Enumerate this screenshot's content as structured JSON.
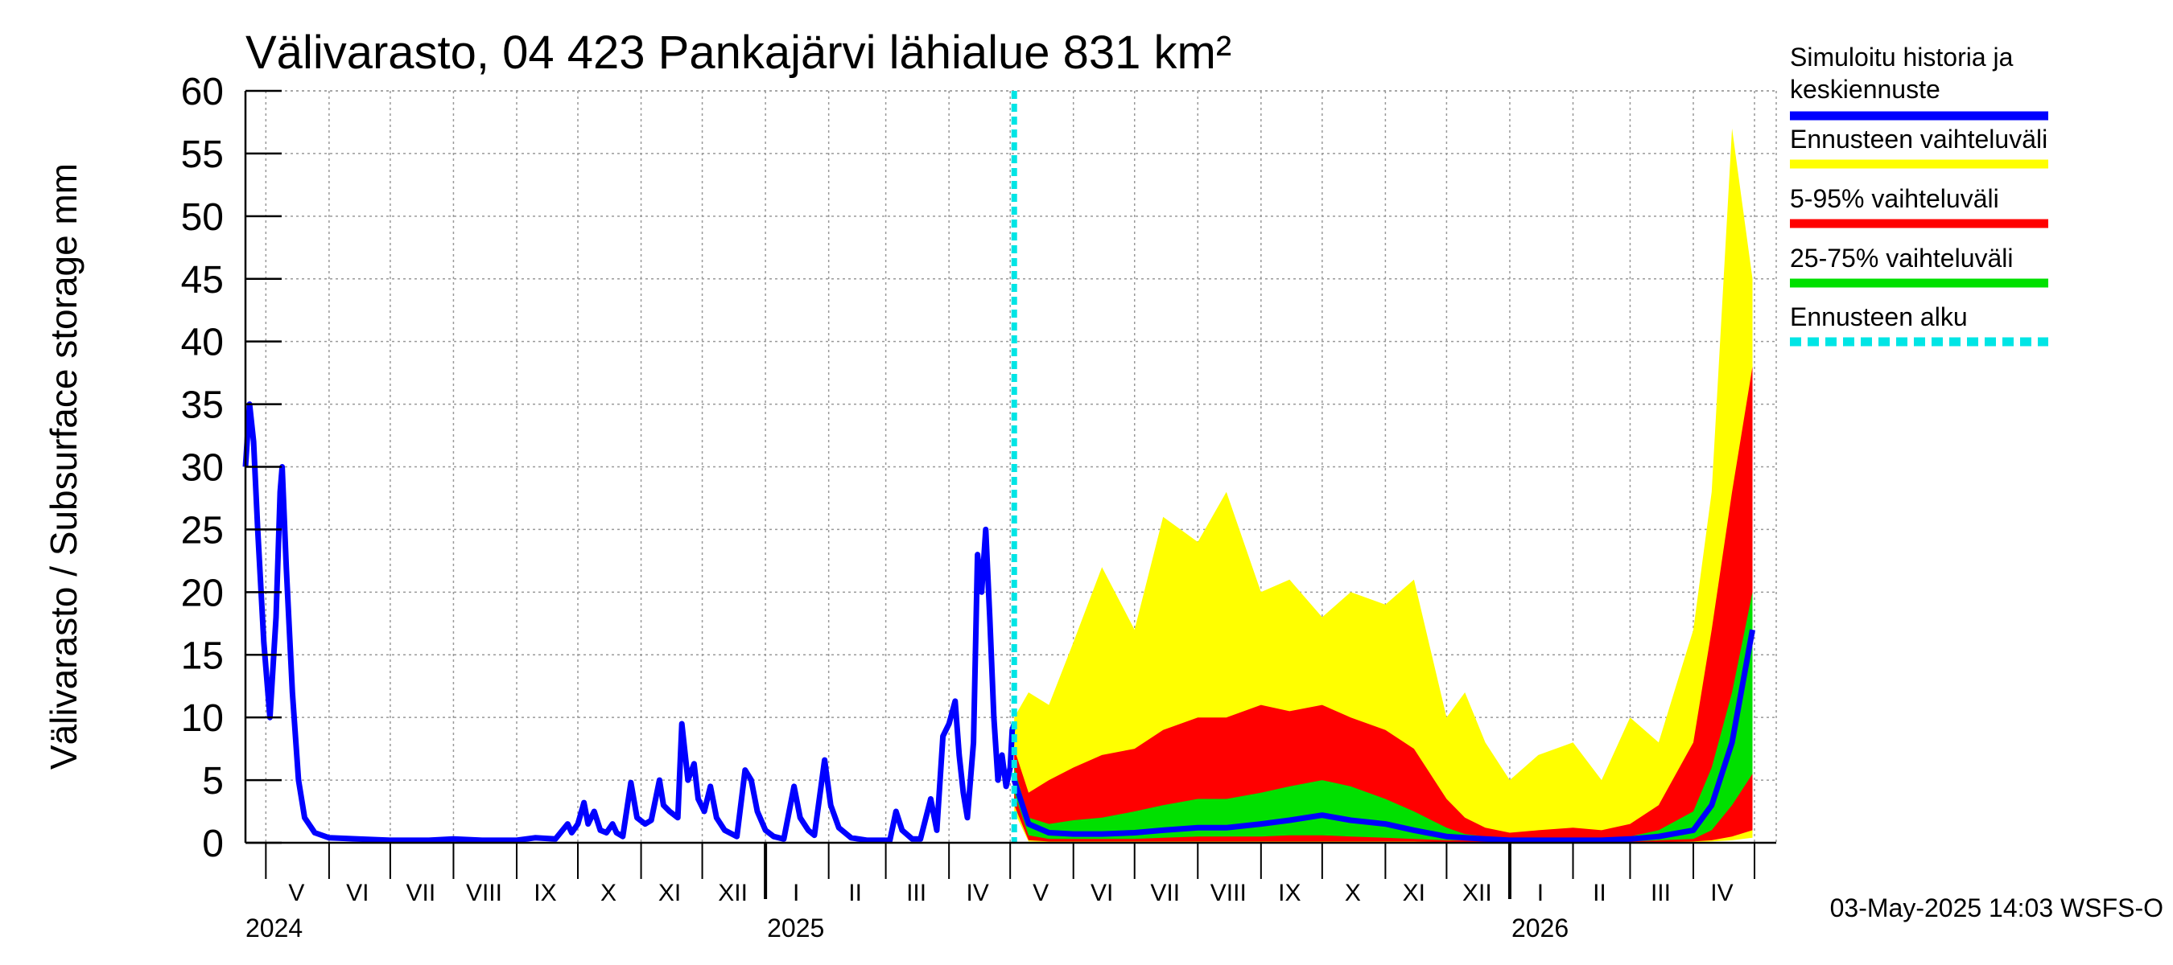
{
  "chart_data": {
    "type": "area",
    "title": "Välivarasto, 04 423 Pankajärvi lähialue 831 km²",
    "ylabel": "Välivarasto / Subsurface storage  mm",
    "ylim": [
      0,
      60
    ],
    "yticks": [
      "0",
      "5",
      "10",
      "15",
      "20",
      "25",
      "30",
      "35",
      "40",
      "45",
      "50",
      "55",
      "60"
    ],
    "xlim": [
      "2024-04-21",
      "2026-05-01"
    ],
    "grid": true,
    "legend_position": "right",
    "month_labels": [
      {
        "label": "V",
        "date": "2024-05-16"
      },
      {
        "label": "VI",
        "date": "2024-06-15"
      },
      {
        "label": "VII",
        "date": "2024-07-16"
      },
      {
        "label": "VIII",
        "date": "2024-08-16"
      },
      {
        "label": "IX",
        "date": "2024-09-15"
      },
      {
        "label": "X",
        "date": "2024-10-16"
      },
      {
        "label": "XI",
        "date": "2024-11-15"
      },
      {
        "label": "XII",
        "date": "2024-12-16"
      },
      {
        "label": "I",
        "date": "2025-01-16"
      },
      {
        "label": "II",
        "date": "2025-02-14"
      },
      {
        "label": "III",
        "date": "2025-03-16"
      },
      {
        "label": "IV",
        "date": "2025-04-15"
      },
      {
        "label": "V",
        "date": "2025-05-16"
      },
      {
        "label": "VI",
        "date": "2025-06-15"
      },
      {
        "label": "VII",
        "date": "2025-07-16"
      },
      {
        "label": "VIII",
        "date": "2025-08-16"
      },
      {
        "label": "IX",
        "date": "2025-09-15"
      },
      {
        "label": "X",
        "date": "2025-10-16"
      },
      {
        "label": "XI",
        "date": "2025-11-15"
      },
      {
        "label": "XII",
        "date": "2025-12-16"
      },
      {
        "label": "I",
        "date": "2026-01-16"
      },
      {
        "label": "II",
        "date": "2026-02-14"
      },
      {
        "label": "III",
        "date": "2026-03-16"
      },
      {
        "label": "IV",
        "date": "2026-04-15"
      }
    ],
    "year_labels": [
      {
        "label": "2024",
        "date": "2024-04-21"
      },
      {
        "label": "2025",
        "date": "2025-01-01"
      },
      {
        "label": "2026",
        "date": "2026-01-01"
      }
    ],
    "forecast_start": "2025-05-03",
    "history": {
      "name": "Simuloitu historia ja keskiennuste",
      "color": "#0000ff",
      "points": [
        [
          "2024-04-21",
          30
        ],
        [
          "2024-04-23",
          35
        ],
        [
          "2024-04-25",
          32
        ],
        [
          "2024-04-27",
          25
        ],
        [
          "2024-04-30",
          16
        ],
        [
          "2024-05-03",
          10
        ],
        [
          "2024-05-06",
          18
        ],
        [
          "2024-05-08",
          28
        ],
        [
          "2024-05-09",
          30
        ],
        [
          "2024-05-11",
          22
        ],
        [
          "2024-05-14",
          12
        ],
        [
          "2024-05-17",
          5
        ],
        [
          "2024-05-20",
          2
        ],
        [
          "2024-05-25",
          0.8
        ],
        [
          "2024-06-01",
          0.4
        ],
        [
          "2024-06-15",
          0.3
        ],
        [
          "2024-07-01",
          0.2
        ],
        [
          "2024-07-20",
          0.2
        ],
        [
          "2024-08-01",
          0.3
        ],
        [
          "2024-08-15",
          0.2
        ],
        [
          "2024-09-01",
          0.2
        ],
        [
          "2024-09-10",
          0.4
        ],
        [
          "2024-09-20",
          0.3
        ],
        [
          "2024-09-26",
          1.5
        ],
        [
          "2024-09-28",
          0.8
        ],
        [
          "2024-10-01",
          1.5
        ],
        [
          "2024-10-04",
          3.2
        ],
        [
          "2024-10-06",
          1.5
        ],
        [
          "2024-10-09",
          2.5
        ],
        [
          "2024-10-12",
          1.0
        ],
        [
          "2024-10-15",
          0.8
        ],
        [
          "2024-10-18",
          1.5
        ],
        [
          "2024-10-20",
          0.8
        ],
        [
          "2024-10-23",
          0.5
        ],
        [
          "2024-10-27",
          4.8
        ],
        [
          "2024-10-30",
          2.0
        ],
        [
          "2024-11-03",
          1.5
        ],
        [
          "2024-11-06",
          1.8
        ],
        [
          "2024-11-10",
          5.0
        ],
        [
          "2024-11-12",
          3.0
        ],
        [
          "2024-11-15",
          2.5
        ],
        [
          "2024-11-19",
          2.0
        ],
        [
          "2024-11-21",
          9.5
        ],
        [
          "2024-11-24",
          5.0
        ],
        [
          "2024-11-27",
          6.3
        ],
        [
          "2024-11-29",
          3.5
        ],
        [
          "2024-12-02",
          2.5
        ],
        [
          "2024-12-05",
          4.5
        ],
        [
          "2024-12-08",
          2.0
        ],
        [
          "2024-12-12",
          1.0
        ],
        [
          "2024-12-18",
          0.5
        ],
        [
          "2024-12-22",
          5.8
        ],
        [
          "2024-12-25",
          5.0
        ],
        [
          "2024-12-28",
          2.5
        ],
        [
          "2025-01-01",
          1.0
        ],
        [
          "2025-01-05",
          0.5
        ],
        [
          "2025-01-10",
          0.3
        ],
        [
          "2025-01-15",
          4.5
        ],
        [
          "2025-01-18",
          2.0
        ],
        [
          "2025-01-22",
          1.0
        ],
        [
          "2025-01-25",
          0.6
        ],
        [
          "2025-01-30",
          6.6
        ],
        [
          "2025-02-02",
          3.0
        ],
        [
          "2025-02-06",
          1.2
        ],
        [
          "2025-02-12",
          0.4
        ],
        [
          "2025-02-20",
          0.2
        ],
        [
          "2025-03-03",
          0.2
        ],
        [
          "2025-03-06",
          2.5
        ],
        [
          "2025-03-09",
          1.0
        ],
        [
          "2025-03-14",
          0.3
        ],
        [
          "2025-03-18",
          0.3
        ],
        [
          "2025-03-23",
          3.5
        ],
        [
          "2025-03-26",
          1.0
        ],
        [
          "2025-03-29",
          8.5
        ],
        [
          "2025-04-01",
          9.5
        ],
        [
          "2025-04-04",
          11.3
        ],
        [
          "2025-04-06",
          7.0
        ],
        [
          "2025-04-08",
          4.0
        ],
        [
          "2025-04-10",
          2.0
        ],
        [
          "2025-04-13",
          8.0
        ],
        [
          "2025-04-15",
          23.0
        ],
        [
          "2025-04-17",
          20.0
        ],
        [
          "2025-04-19",
          25.0
        ],
        [
          "2025-04-21",
          18.0
        ],
        [
          "2025-04-23",
          10.0
        ],
        [
          "2025-04-25",
          5.0
        ],
        [
          "2025-04-27",
          7.0
        ],
        [
          "2025-04-29",
          4.5
        ],
        [
          "2025-05-01",
          6.0
        ],
        [
          "2025-05-02",
          9.0
        ],
        [
          "2025-05-03",
          9.5
        ]
      ]
    },
    "forecast": {
      "dates": [
        "2025-05-03",
        "2025-05-10",
        "2025-05-20",
        "2025-06-01",
        "2025-06-15",
        "2025-07-01",
        "2025-07-15",
        "2025-08-01",
        "2025-08-15",
        "2025-09-01",
        "2025-09-15",
        "2025-10-01",
        "2025-10-15",
        "2025-11-01",
        "2025-11-15",
        "2025-12-01",
        "2025-12-10",
        "2025-12-20",
        "2026-01-01",
        "2026-01-15",
        "2026-02-01",
        "2026-02-15",
        "2026-03-01",
        "2026-03-15",
        "2026-04-01",
        "2026-04-10",
        "2026-04-20",
        "2026-04-30"
      ],
      "median": [
        5.0,
        1.5,
        0.8,
        0.7,
        0.7,
        0.8,
        1.0,
        1.2,
        1.2,
        1.5,
        1.8,
        2.2,
        1.8,
        1.5,
        1.0,
        0.5,
        0.4,
        0.3,
        0.2,
        0.2,
        0.2,
        0.2,
        0.3,
        0.5,
        1.0,
        3.0,
        8.0,
        17.0
      ],
      "band_25_75": {
        "name": "25-75% vaihteluväli",
        "color": "#00e000",
        "low": [
          4.0,
          0.6,
          0.3,
          0.3,
          0.3,
          0.3,
          0.4,
          0.5,
          0.5,
          0.5,
          0.6,
          0.6,
          0.5,
          0.4,
          0.3,
          0.2,
          0.2,
          0.1,
          0.1,
          0.1,
          0.1,
          0.1,
          0.1,
          0.2,
          0.3,
          1.0,
          3.0,
          5.5
        ],
        "high": [
          6.0,
          2.0,
          1.5,
          1.8,
          2.0,
          2.5,
          3.0,
          3.5,
          3.5,
          4.0,
          4.5,
          5.0,
          4.5,
          3.5,
          2.5,
          1.2,
          0.7,
          0.5,
          0.4,
          0.4,
          0.4,
          0.4,
          0.5,
          1.0,
          2.5,
          6.0,
          12.0,
          20.0
        ]
      },
      "band_5_95": {
        "name": "5-95% vaihteluväli",
        "color": "#ff0000",
        "low": [
          3.0,
          0.2,
          0.1,
          0.1,
          0.1,
          0.1,
          0.1,
          0.1,
          0.1,
          0.1,
          0.1,
          0.1,
          0.1,
          0.1,
          0.1,
          0.05,
          0.05,
          0.05,
          0.05,
          0.05,
          0.05,
          0.05,
          0.05,
          0.05,
          0.1,
          0.2,
          0.5,
          1.0
        ],
        "high": [
          7.5,
          4.0,
          5.0,
          6.0,
          7.0,
          7.5,
          9.0,
          10.0,
          10.0,
          11.0,
          10.5,
          11.0,
          10.0,
          9.0,
          7.5,
          3.5,
          2.0,
          1.2,
          0.8,
          1.0,
          1.2,
          1.0,
          1.5,
          3.0,
          8.0,
          17.0,
          28.0,
          38.0
        ]
      },
      "band_full": {
        "name": "Ennusteen vaihteluväli",
        "color": "#ffff00",
        "low": [
          2.5,
          0.1,
          0.05,
          0.05,
          0.05,
          0.05,
          0.05,
          0.05,
          0.05,
          0.05,
          0.05,
          0.05,
          0.05,
          0.05,
          0.05,
          0.05,
          0.05,
          0.05,
          0.05,
          0.05,
          0.05,
          0.05,
          0.05,
          0.05,
          0.05,
          0.1,
          0.2,
          0.4
        ],
        "high": [
          10.0,
          12.0,
          11.0,
          16.0,
          22.0,
          17.0,
          26.0,
          24.0,
          28.0,
          20.0,
          21.0,
          18.0,
          20.0,
          19.0,
          21.0,
          10.0,
          12.0,
          8.0,
          5.0,
          7.0,
          8.0,
          5.0,
          10.0,
          8.0,
          17.0,
          28.0,
          57.0,
          45.0
        ]
      }
    },
    "legend": [
      {
        "label_line1": "Simuloitu historia ja",
        "label_line2": "keskiennuste",
        "color": "#0000ff",
        "style": "solid"
      },
      {
        "label_line1": "Ennusteen vaihteluväli",
        "label_line2": "",
        "color": "#ffff00",
        "style": "solid"
      },
      {
        "label_line1": "5-95% vaihteluväli",
        "label_line2": "",
        "color": "#ff0000",
        "style": "solid"
      },
      {
        "label_line1": "25-75% vaihteluväli",
        "label_line2": "",
        "color": "#00e000",
        "style": "solid"
      },
      {
        "label_line1": "Ennusteen alku",
        "label_line2": "",
        "color": "#00e5e5",
        "style": "dashed"
      }
    ],
    "footer": "03-May-2025 14:03 WSFS-O"
  }
}
